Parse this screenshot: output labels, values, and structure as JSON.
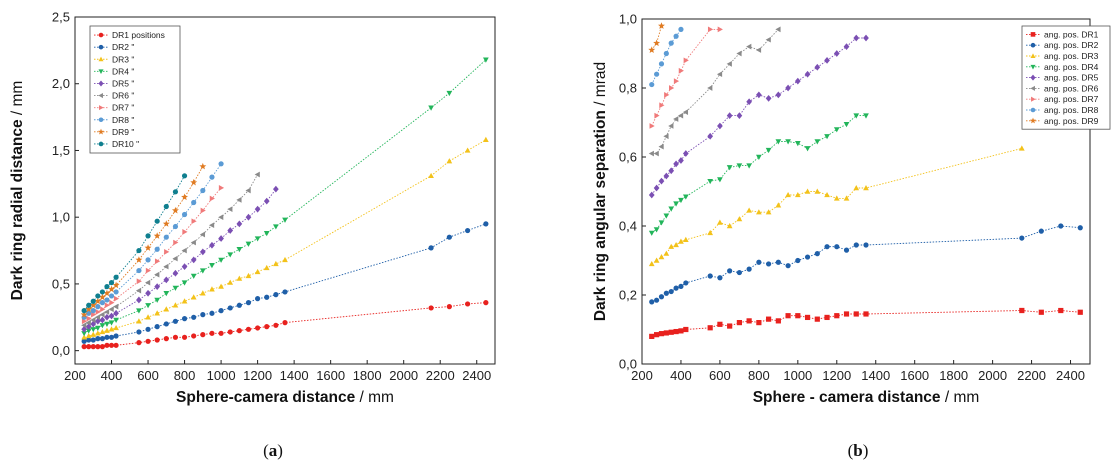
{
  "chart_data": [
    {
      "type": "scatter",
      "panel_label": "(a)",
      "panel_letter": "a",
      "xlabel": "Sphere-camera distance",
      "xunit": "mm",
      "ylabel": "Dark ring radial distance",
      "yunit": "mm",
      "xlim": [
        200,
        2500
      ],
      "ylim": [
        -0.1,
        2.5
      ],
      "xticks": [
        200,
        400,
        600,
        800,
        1000,
        1200,
        1400,
        1600,
        1800,
        2000,
        2200,
        2400
      ],
      "yticks": [
        0,
        0.5,
        1.0,
        1.5,
        2.0,
        2.5
      ],
      "ytick_labels": [
        "0,0",
        "0,5",
        "1,0",
        "1,5",
        "2,0",
        "2,5"
      ],
      "grid": false,
      "legend": "top-left",
      "series": [
        {
          "name": "DR1 positions",
          "color": "#e8211e",
          "marker": "circle",
          "x": [
            250,
            275,
            300,
            325,
            350,
            375,
            400,
            425,
            550,
            600,
            650,
            700,
            750,
            800,
            850,
            900,
            950,
            1000,
            1050,
            1100,
            1150,
            1200,
            1250,
            1300,
            1350,
            2150,
            2250,
            2350,
            2450
          ],
          "y": [
            0.03,
            0.03,
            0.03,
            0.03,
            0.03,
            0.04,
            0.04,
            0.04,
            0.06,
            0.07,
            0.08,
            0.09,
            0.1,
            0.1,
            0.11,
            0.12,
            0.13,
            0.13,
            0.14,
            0.15,
            0.16,
            0.17,
            0.18,
            0.19,
            0.21,
            0.32,
            0.33,
            0.35,
            0.36
          ]
        },
        {
          "name": "DR2 \"",
          "color": "#1f5fa8",
          "marker": "circle",
          "x": [
            250,
            275,
            300,
            325,
            350,
            375,
            400,
            425,
            550,
            600,
            650,
            700,
            750,
            800,
            850,
            900,
            950,
            1000,
            1050,
            1100,
            1150,
            1200,
            1250,
            1300,
            1350,
            2150,
            2250,
            2350,
            2450
          ],
          "y": [
            0.07,
            0.08,
            0.08,
            0.09,
            0.09,
            0.1,
            0.1,
            0.11,
            0.14,
            0.16,
            0.18,
            0.2,
            0.22,
            0.24,
            0.25,
            0.27,
            0.28,
            0.3,
            0.32,
            0.34,
            0.36,
            0.39,
            0.4,
            0.42,
            0.44,
            0.77,
            0.85,
            0.9,
            0.95
          ]
        },
        {
          "name": "DR3 \"",
          "color": "#f3c21a",
          "marker": "triangle-up",
          "x": [
            250,
            275,
            300,
            325,
            350,
            375,
            400,
            425,
            550,
            600,
            650,
            700,
            750,
            800,
            850,
            900,
            950,
            1000,
            1050,
            1100,
            1150,
            1200,
            1250,
            1300,
            1350,
            2150,
            2250,
            2350,
            2450
          ],
          "y": [
            0.1,
            0.11,
            0.12,
            0.13,
            0.14,
            0.15,
            0.16,
            0.17,
            0.22,
            0.25,
            0.28,
            0.31,
            0.34,
            0.37,
            0.4,
            0.43,
            0.46,
            0.48,
            0.51,
            0.54,
            0.56,
            0.59,
            0.62,
            0.65,
            0.68,
            1.31,
            1.42,
            1.5,
            1.58
          ]
        },
        {
          "name": "DR4 \"",
          "color": "#22b55a",
          "marker": "triangle-down",
          "x": [
            250,
            275,
            300,
            325,
            350,
            375,
            400,
            425,
            550,
            600,
            650,
            700,
            750,
            800,
            850,
            900,
            950,
            1000,
            1050,
            1100,
            1150,
            1200,
            1250,
            1300,
            1350,
            2150,
            2250,
            2450
          ],
          "y": [
            0.13,
            0.15,
            0.16,
            0.17,
            0.19,
            0.2,
            0.21,
            0.23,
            0.3,
            0.34,
            0.38,
            0.43,
            0.47,
            0.51,
            0.56,
            0.6,
            0.64,
            0.68,
            0.72,
            0.76,
            0.8,
            0.84,
            0.88,
            0.93,
            0.98,
            1.82,
            1.93,
            2.18
          ]
        },
        {
          "name": "DR5 \"",
          "color": "#7b4fb3",
          "marker": "diamond",
          "x": [
            250,
            275,
            300,
            325,
            350,
            375,
            400,
            425,
            550,
            600,
            650,
            700,
            750,
            800,
            850,
            900,
            950,
            1000,
            1050,
            1100,
            1150,
            1200,
            1250,
            1300
          ],
          "y": [
            0.16,
            0.18,
            0.2,
            0.22,
            0.23,
            0.25,
            0.26,
            0.28,
            0.38,
            0.43,
            0.48,
            0.53,
            0.58,
            0.63,
            0.68,
            0.74,
            0.79,
            0.84,
            0.9,
            0.95,
            1.0,
            1.06,
            1.12,
            1.21
          ]
        },
        {
          "name": "DR6 \"",
          "color": "#8a8a8a",
          "marker": "triangle-left",
          "x": [
            250,
            275,
            300,
            325,
            350,
            375,
            400,
            425,
            550,
            600,
            650,
            700,
            750,
            800,
            850,
            900,
            950,
            1000,
            1050,
            1100,
            1150,
            1200
          ],
          "y": [
            0.19,
            0.21,
            0.23,
            0.25,
            0.27,
            0.29,
            0.31,
            0.33,
            0.45,
            0.51,
            0.57,
            0.63,
            0.69,
            0.75,
            0.81,
            0.87,
            0.94,
            1.0,
            1.06,
            1.13,
            1.2,
            1.32
          ]
        },
        {
          "name": "DR7 \"",
          "color": "#f07a7a",
          "marker": "triangle-right",
          "x": [
            250,
            275,
            300,
            325,
            350,
            375,
            400,
            425,
            550,
            600,
            650,
            700,
            750,
            800,
            850,
            900,
            950,
            1000
          ],
          "y": [
            0.22,
            0.24,
            0.27,
            0.29,
            0.31,
            0.34,
            0.36,
            0.39,
            0.52,
            0.6,
            0.67,
            0.74,
            0.81,
            0.89,
            0.97,
            1.05,
            1.14,
            1.22
          ]
        },
        {
          "name": "DR8 \"",
          "color": "#5b9bd5",
          "marker": "circle",
          "x": [
            250,
            275,
            300,
            325,
            350,
            375,
            400,
            425,
            550,
            600,
            650,
            700,
            750,
            800,
            850,
            900,
            950,
            1000
          ],
          "y": [
            0.25,
            0.28,
            0.3,
            0.33,
            0.36,
            0.38,
            0.41,
            0.44,
            0.6,
            0.68,
            0.76,
            0.85,
            0.93,
            1.02,
            1.11,
            1.2,
            1.3,
            1.4
          ]
        },
        {
          "name": "DR9 \"",
          "color": "#e07b22",
          "marker": "star",
          "x": [
            250,
            275,
            300,
            325,
            350,
            375,
            400,
            425,
            550,
            600,
            650,
            700,
            750,
            800,
            850,
            900
          ],
          "y": [
            0.27,
            0.31,
            0.34,
            0.37,
            0.4,
            0.43,
            0.46,
            0.49,
            0.68,
            0.77,
            0.86,
            0.95,
            1.05,
            1.15,
            1.26,
            1.38
          ]
        },
        {
          "name": "DR10 \"",
          "color": "#0f7f8f",
          "marker": "circle",
          "x": [
            250,
            275,
            300,
            325,
            350,
            375,
            400,
            425,
            550,
            600,
            650,
            700,
            750,
            800
          ],
          "y": [
            0.3,
            0.34,
            0.37,
            0.41,
            0.44,
            0.48,
            0.51,
            0.55,
            0.75,
            0.86,
            0.97,
            1.08,
            1.19,
            1.31
          ]
        }
      ]
    },
    {
      "type": "scatter",
      "panel_label": "(b)",
      "panel_letter": "b",
      "xlabel": "Sphere - camera distance",
      "xunit": "mm",
      "ylabel": "Dark ring angular separation",
      "yunit": "mrad",
      "xlim": [
        200,
        2500
      ],
      "ylim": [
        0.0,
        1.0
      ],
      "xticks": [
        200,
        400,
        600,
        800,
        1000,
        1200,
        1400,
        1600,
        1800,
        2000,
        2200,
        2400
      ],
      "yticks": [
        0.0,
        0.2,
        0.4,
        0.6,
        0.8,
        1.0
      ],
      "ytick_labels": [
        "0,0",
        "0,2",
        "0,4",
        "0,6",
        "0,8",
        "1,0"
      ],
      "grid": false,
      "legend": "top-right",
      "series": [
        {
          "name": "ang. pos. DR1",
          "color": "#e8211e",
          "marker": "square",
          "x": [
            250,
            275,
            300,
            325,
            350,
            375,
            400,
            425,
            550,
            600,
            650,
            700,
            750,
            800,
            850,
            900,
            950,
            1000,
            1050,
            1100,
            1150,
            1200,
            1250,
            1300,
            1350,
            2150,
            2250,
            2350,
            2450
          ],
          "y": [
            0.08,
            0.085,
            0.088,
            0.09,
            0.092,
            0.094,
            0.096,
            0.1,
            0.105,
            0.115,
            0.11,
            0.12,
            0.125,
            0.12,
            0.13,
            0.125,
            0.14,
            0.14,
            0.135,
            0.13,
            0.135,
            0.14,
            0.145,
            0.145,
            0.145,
            0.155,
            0.15,
            0.155,
            0.15
          ]
        },
        {
          "name": "ang. pos. DR2",
          "color": "#1f5fa8",
          "marker": "circle",
          "x": [
            250,
            275,
            300,
            325,
            350,
            375,
            400,
            425,
            550,
            600,
            650,
            700,
            750,
            800,
            850,
            900,
            950,
            1000,
            1050,
            1100,
            1150,
            1200,
            1250,
            1300,
            1350,
            2150,
            2250,
            2350,
            2450
          ],
          "y": [
            0.18,
            0.185,
            0.195,
            0.205,
            0.21,
            0.22,
            0.225,
            0.235,
            0.255,
            0.25,
            0.27,
            0.265,
            0.275,
            0.295,
            0.29,
            0.295,
            0.285,
            0.3,
            0.31,
            0.32,
            0.34,
            0.34,
            0.33,
            0.345,
            0.345,
            0.365,
            0.385,
            0.4,
            0.395
          ]
        },
        {
          "name": "ang. pos. DR3",
          "color": "#f3c21a",
          "marker": "triangle-up",
          "x": [
            250,
            275,
            300,
            325,
            350,
            375,
            400,
            425,
            550,
            600,
            650,
            700,
            750,
            800,
            850,
            900,
            950,
            1000,
            1050,
            1100,
            1150,
            1200,
            1250,
            1300,
            1350,
            2150
          ],
          "y": [
            0.29,
            0.3,
            0.31,
            0.32,
            0.34,
            0.345,
            0.355,
            0.36,
            0.38,
            0.41,
            0.4,
            0.42,
            0.445,
            0.44,
            0.44,
            0.46,
            0.49,
            0.49,
            0.5,
            0.5,
            0.49,
            0.48,
            0.48,
            0.51,
            0.51,
            0.625
          ]
        },
        {
          "name": "ang. pos. DR4",
          "color": "#22b55a",
          "marker": "triangle-down",
          "x": [
            250,
            275,
            300,
            325,
            350,
            375,
            400,
            425,
            550,
            600,
            650,
            700,
            750,
            800,
            850,
            900,
            950,
            1000,
            1050,
            1100,
            1150,
            1200,
            1250,
            1300,
            1350
          ],
          "y": [
            0.38,
            0.39,
            0.41,
            0.43,
            0.45,
            0.465,
            0.475,
            0.485,
            0.53,
            0.535,
            0.57,
            0.575,
            0.575,
            0.6,
            0.62,
            0.645,
            0.645,
            0.64,
            0.625,
            0.645,
            0.66,
            0.68,
            0.695,
            0.72,
            0.72
          ]
        },
        {
          "name": "ang. pos. DR5",
          "color": "#7b4fb3",
          "marker": "diamond",
          "x": [
            250,
            275,
            300,
            325,
            350,
            375,
            400,
            425,
            550,
            600,
            650,
            700,
            750,
            800,
            850,
            900,
            950,
            1000,
            1050,
            1100,
            1150,
            1200,
            1250,
            1300,
            1350
          ],
          "y": [
            0.49,
            0.51,
            0.53,
            0.545,
            0.56,
            0.58,
            0.59,
            0.61,
            0.66,
            0.69,
            0.72,
            0.72,
            0.76,
            0.78,
            0.77,
            0.78,
            0.8,
            0.82,
            0.84,
            0.86,
            0.88,
            0.9,
            0.92,
            0.945,
            0.945
          ]
        },
        {
          "name": "ang. pos. DR6",
          "color": "#8a8a8a",
          "marker": "triangle-left",
          "x": [
            250,
            275,
            300,
            325,
            350,
            375,
            400,
            425,
            550,
            600,
            650,
            700,
            750,
            800,
            850,
            900
          ],
          "y": [
            0.61,
            0.61,
            0.63,
            0.66,
            0.69,
            0.71,
            0.72,
            0.73,
            0.8,
            0.84,
            0.87,
            0.9,
            0.92,
            0.91,
            0.94,
            0.97
          ]
        },
        {
          "name": "ang. pos. DR7",
          "color": "#f07a7a",
          "marker": "triangle-right",
          "x": [
            250,
            275,
            300,
            325,
            350,
            375,
            400,
            425,
            550,
            600
          ],
          "y": [
            0.69,
            0.72,
            0.75,
            0.78,
            0.8,
            0.82,
            0.85,
            0.88,
            0.97,
            0.97
          ]
        },
        {
          "name": "ang. pos. DR8",
          "color": "#5b9bd5",
          "marker": "circle",
          "x": [
            250,
            275,
            300,
            325,
            350,
            375,
            400
          ],
          "y": [
            0.81,
            0.84,
            0.87,
            0.9,
            0.93,
            0.95,
            0.97
          ]
        },
        {
          "name": "ang. pos. DR9",
          "color": "#e07b22",
          "marker": "star",
          "x": [
            250,
            275,
            300
          ],
          "y": [
            0.91,
            0.93,
            0.98
          ]
        }
      ]
    }
  ]
}
